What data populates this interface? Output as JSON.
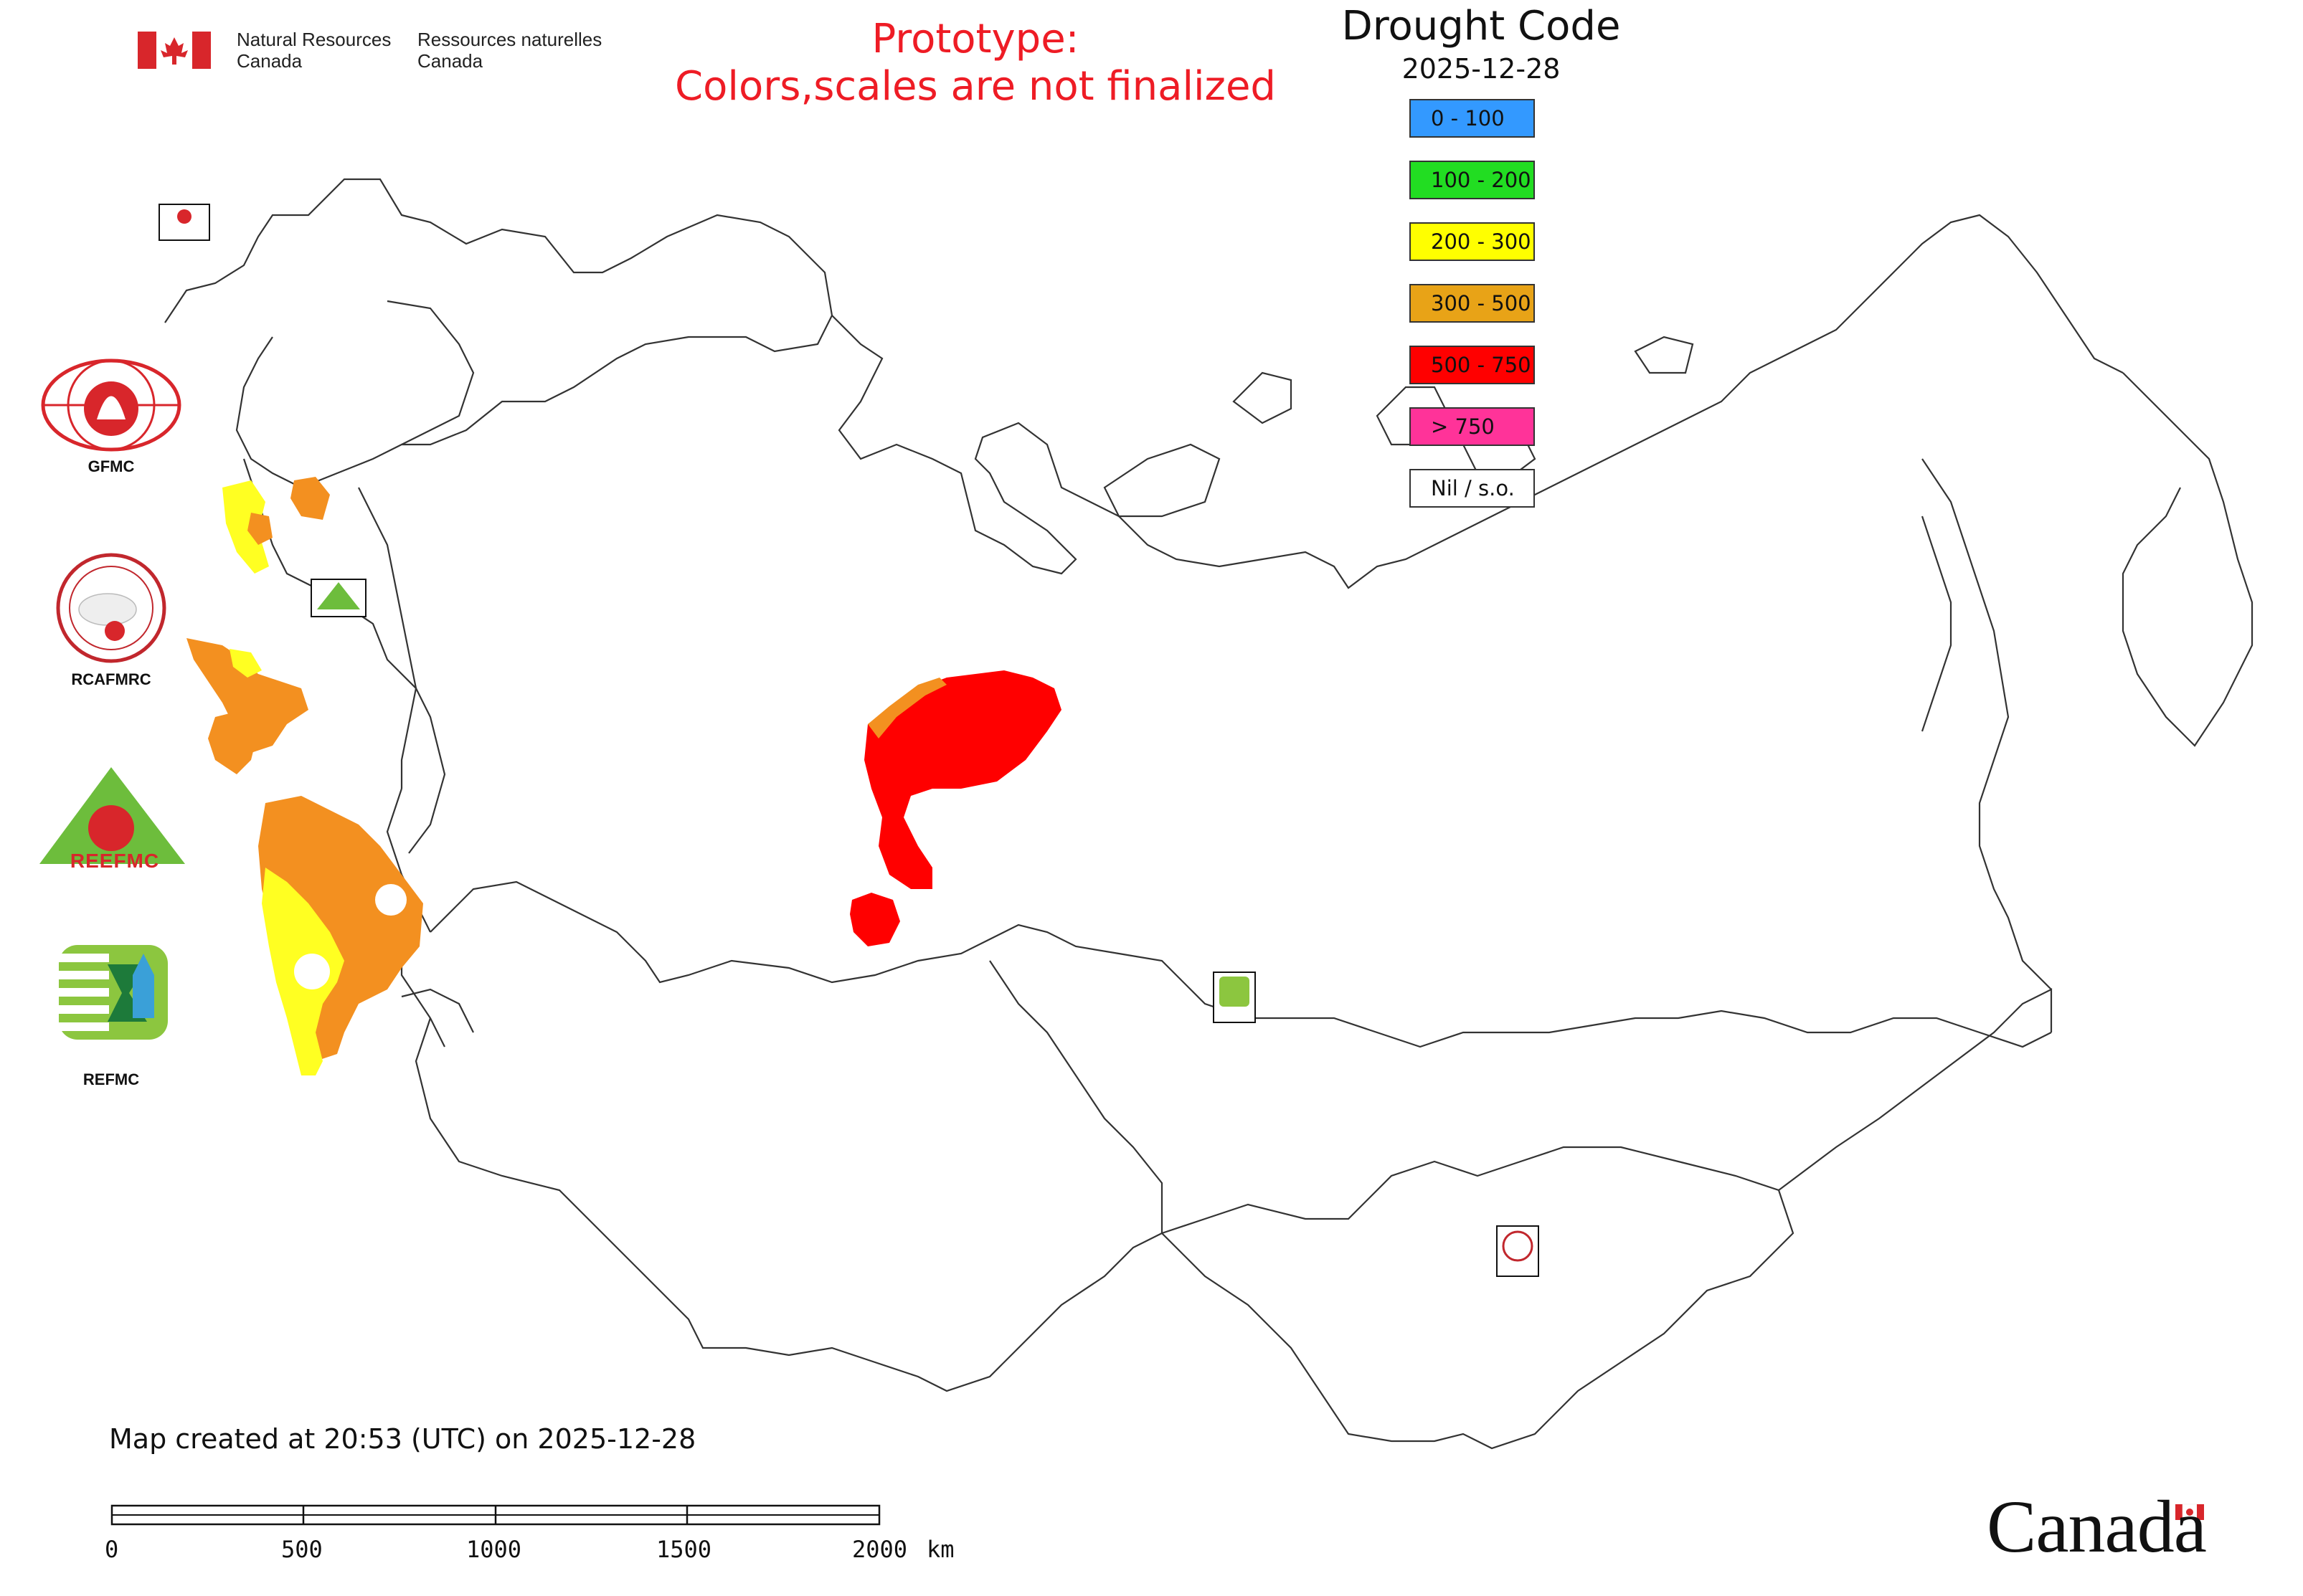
{
  "header": {
    "org_en_line1": "Natural Resources",
    "org_en_line2": "Canada",
    "org_fr_line1": "Ressources naturelles",
    "org_fr_line2": "Canada"
  },
  "prototype": {
    "line1": "Prototype:",
    "line2": "Colors,scales are not finalized",
    "color": "#ee1c25"
  },
  "legend": {
    "title": "Drought Code",
    "date": "2025-12-28",
    "classes": [
      {
        "label": "0 - 100",
        "color": "#3399ff"
      },
      {
        "label": "100 - 200",
        "color": "#22dd22"
      },
      {
        "label": "200 - 300",
        "color": "#ffff00"
      },
      {
        "label": "300 - 500",
        "color": "#e8a317"
      },
      {
        "label": "500 - 750",
        "color": "#ff0000"
      },
      {
        "label": "> 750",
        "color": "#ff3399"
      },
      {
        "label": "Nil / s.o.",
        "color": "#ffffff"
      }
    ]
  },
  "logos": {
    "gfmc": "GFMC",
    "rcafmrc": "RCAFMRC",
    "reefmc": "REEFMC",
    "refmc": "REFMC"
  },
  "footer": {
    "created": "Map created at 20:53 (UTC) on 2025-12-28"
  },
  "scale_bar": {
    "ticks": [
      "0",
      "500",
      "1000",
      "1500",
      "2000"
    ],
    "unit": "km"
  },
  "wordmark": "Canada",
  "map_fill_colors": {
    "orange": "#f39020",
    "yellow": "#ffff22",
    "red": "#ff0000"
  }
}
